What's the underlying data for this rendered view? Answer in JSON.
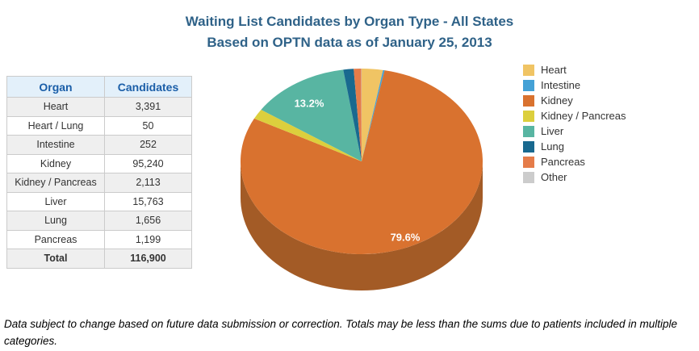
{
  "title": {
    "line1": "Waiting List Candidates by Organ Type - All States",
    "line2": "Based on OPTN data as of January 25, 2013"
  },
  "table": {
    "headers": [
      "Organ",
      "Candidates"
    ],
    "rows": [
      [
        "Heart",
        "3,391"
      ],
      [
        "Heart / Lung",
        "50"
      ],
      [
        "Intestine",
        "252"
      ],
      [
        "Kidney",
        "95,240"
      ],
      [
        "Kidney / Pancreas",
        "2,113"
      ],
      [
        "Liver",
        "15,763"
      ],
      [
        "Lung",
        "1,656"
      ],
      [
        "Pancreas",
        "1,199"
      ]
    ],
    "total": {
      "label": "Total",
      "value": "116,900"
    }
  },
  "chart_data": {
    "type": "pie",
    "style": "3d",
    "title": "Waiting List Candidates by Organ Type - All States Based on OPTN data as of January 25, 2013",
    "legend_position": "right",
    "depth_color": "#A35B26",
    "slices": [
      {
        "label": "Heart",
        "value": 3391,
        "color": "#F0C464"
      },
      {
        "label": "Intestine",
        "value": 252,
        "color": "#44A1D6"
      },
      {
        "label": "Kidney",
        "value": 95240,
        "color": "#D9722F",
        "data_label": "79.6%"
      },
      {
        "label": "Kidney / Pancreas",
        "value": 2113,
        "color": "#DCCF3D"
      },
      {
        "label": "Liver",
        "value": 15763,
        "color": "#58B5A2",
        "data_label": "13.2%"
      },
      {
        "label": "Lung",
        "value": 1656,
        "color": "#19698F"
      },
      {
        "label": "Pancreas",
        "value": 1199,
        "color": "#E57C49"
      },
      {
        "label": "Other",
        "value": 50,
        "color": "#CCCCCC"
      }
    ]
  },
  "footnote": "Data subject to change based on future data submission or correction. Totals may be less than the sums due to patients included in multiple categories."
}
